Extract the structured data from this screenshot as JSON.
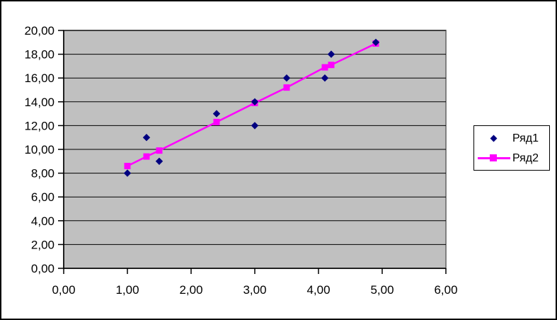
{
  "chart_data": {
    "type": "scatter",
    "title": "",
    "xlabel": "",
    "ylabel": "",
    "xlim": [
      0,
      6
    ],
    "ylim": [
      0,
      20
    ],
    "x_tick_values": [
      0,
      1,
      2,
      3,
      4,
      5,
      6
    ],
    "x_tick_labels": [
      "0,00",
      "1,00",
      "2,00",
      "3,00",
      "4,00",
      "5,00",
      "6,00"
    ],
    "y_tick_values": [
      0,
      2,
      4,
      6,
      8,
      10,
      12,
      14,
      16,
      18,
      20
    ],
    "y_tick_labels": [
      "0,00",
      "2,00",
      "4,00",
      "6,00",
      "8,00",
      "10,00",
      "12,00",
      "14,00",
      "16,00",
      "18,00",
      "20,00"
    ],
    "grid": "horizontal",
    "legend_position": "right",
    "colors": {
      "plot_background": "#C0C0C0",
      "plot_border": "#808080",
      "gridline": "#000000",
      "axis": "#000000",
      "chart_background": "#FFFFFF",
      "outer_border": "#000000"
    },
    "series": [
      {
        "name": "Ряд1",
        "type": "scatter",
        "marker": "diamond",
        "color": "#000080",
        "points": [
          [
            1.0,
            8.0
          ],
          [
            1.3,
            11.0
          ],
          [
            1.5,
            9.0
          ],
          [
            2.4,
            13.0
          ],
          [
            3.0,
            12.0
          ],
          [
            3.0,
            14.0
          ],
          [
            3.5,
            16.0
          ],
          [
            4.1,
            16.0
          ],
          [
            4.2,
            18.0
          ],
          [
            4.9,
            19.0
          ]
        ]
      },
      {
        "name": "Ряд2",
        "type": "line-marker",
        "marker": "square",
        "color": "#FF00FF",
        "points": [
          [
            1.0,
            8.6
          ],
          [
            1.3,
            9.4
          ],
          [
            1.5,
            9.9
          ],
          [
            2.4,
            12.3
          ],
          [
            3.0,
            13.9
          ],
          [
            3.5,
            15.2
          ],
          [
            4.1,
            16.9
          ],
          [
            4.2,
            17.1
          ],
          [
            4.9,
            18.9
          ]
        ]
      }
    ]
  }
}
